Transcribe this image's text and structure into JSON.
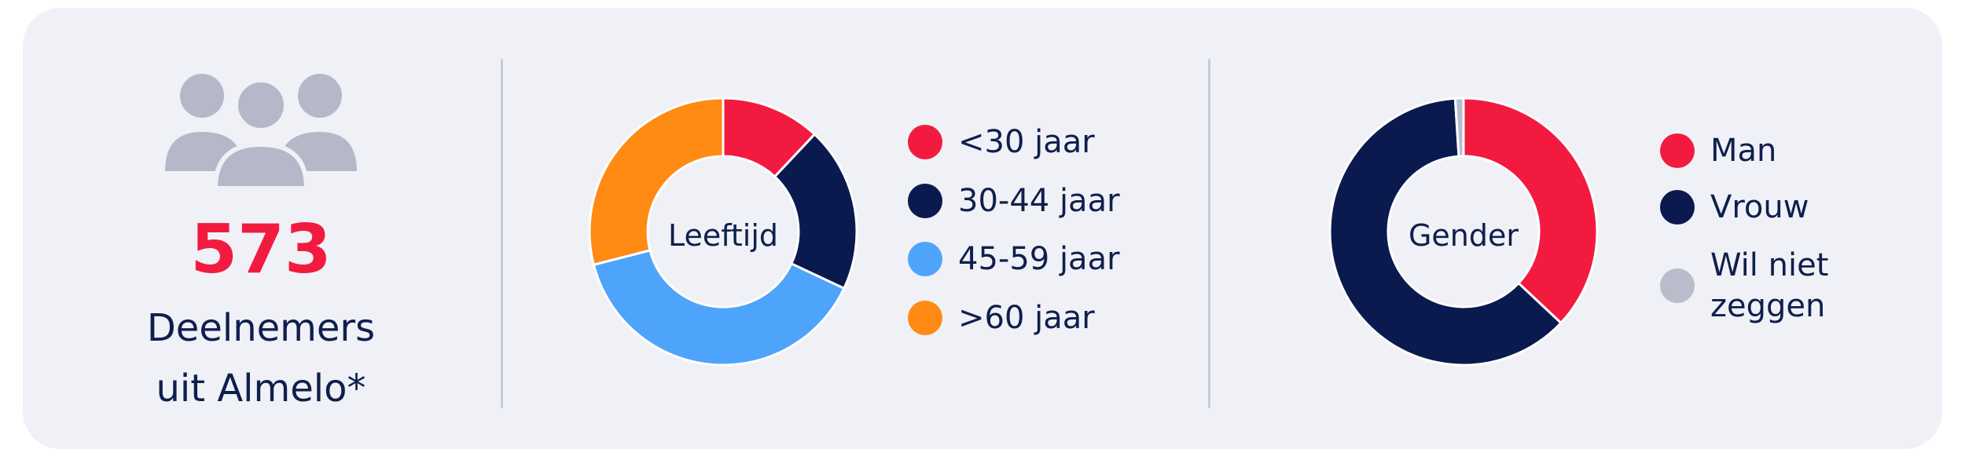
{
  "participants": {
    "count": "573",
    "caption_line1": "Deelnemers",
    "caption_line2": "uit Almelo*"
  },
  "colors": {
    "red": "#f21b3f",
    "navy": "#0b1a4e",
    "light_blue": "#4ea4fb",
    "orange": "#ff8a14",
    "grey": "#b8bccb",
    "icon_grey": "#b4b8c8"
  },
  "chart_data": [
    {
      "type": "pie",
      "donut": true,
      "title": "Leeftijd",
      "categories": [
        "<30 jaar",
        "30-44 jaar",
        "45-59 jaar",
        ">60 jaar"
      ],
      "values": [
        12,
        20,
        39,
        29
      ],
      "colors": [
        "#f21b3f",
        "#0b1a4e",
        "#4ea4fb",
        "#ff8a14"
      ],
      "legend_position": "right"
    },
    {
      "type": "pie",
      "donut": true,
      "title": "Gender",
      "categories": [
        "Man",
        "Vrouw",
        "Wil niet zeggen"
      ],
      "values": [
        37,
        62,
        1
      ],
      "colors": [
        "#f21b3f",
        "#0b1a4e",
        "#b8bccb"
      ],
      "legend_position": "right"
    }
  ],
  "legend_gender_wilniet": {
    "line1": "Wil niet",
    "line2": "zeggen"
  }
}
